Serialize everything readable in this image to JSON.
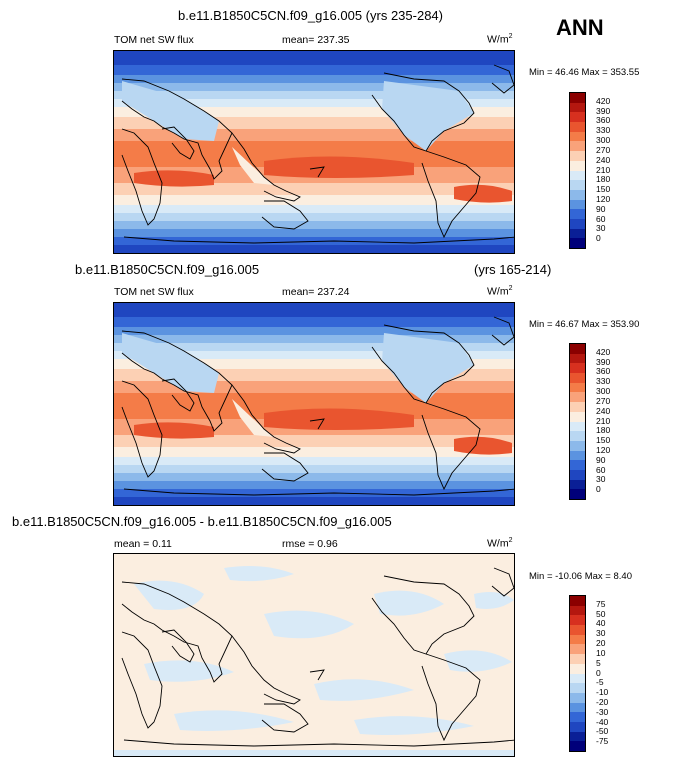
{
  "season": "ANN",
  "panels": [
    {
      "title": "b.e11.B1850C5CN.f09_g16.005 (yrs 235-284)",
      "title_right": "",
      "var": "TOM net SW flux",
      "stat_left": "",
      "mean": "mean= 237.35",
      "units": "W/m",
      "units_sup": "2",
      "minmax": "Min =  46.46 Max = 353.55",
      "levels": [
        "420",
        "390",
        "360",
        "330",
        "300",
        "270",
        "240",
        "210",
        "180",
        "150",
        "120",
        "90",
        "60",
        "30",
        "0"
      ]
    },
    {
      "title": "b.e11.B1850C5CN.f09_g16.005",
      "title_right": "(yrs 165-214)",
      "var": "TOM net SW flux",
      "stat_left": "",
      "mean": "mean= 237.24",
      "units": "W/m",
      "units_sup": "2",
      "minmax": "Min =  46.67 Max = 353.90",
      "levels": [
        "420",
        "390",
        "360",
        "330",
        "300",
        "270",
        "240",
        "210",
        "180",
        "150",
        "120",
        "90",
        "60",
        "30",
        "0"
      ]
    },
    {
      "title": "b.e11.B1850C5CN.f09_g16.005 - b.e11.B1850C5CN.f09_g16.005",
      "title_right": "",
      "var": "",
      "stat_left": "mean =   0.11",
      "mean": "rmse =   0.96",
      "units": "W/m",
      "units_sup": "2",
      "minmax": "Min = -10.06 Max =   8.40",
      "levels": [
        "75",
        "50",
        "40",
        "30",
        "20",
        "10",
        "5",
        "0",
        "-5",
        "-10",
        "-20",
        "-30",
        "-40",
        "-50",
        "-75"
      ]
    }
  ],
  "colors": {
    "scale": [
      "#8b0000",
      "#b4170f",
      "#d7301f",
      "#e9552f",
      "#f47c48",
      "#f9a27a",
      "#fcd0b4",
      "#fbeee0",
      "#d9eaf7",
      "#b9d7f2",
      "#8cb9ea",
      "#5b93e0",
      "#3366d6",
      "#1f46c0",
      "#0a1f96",
      "#00007a"
    ]
  }
}
